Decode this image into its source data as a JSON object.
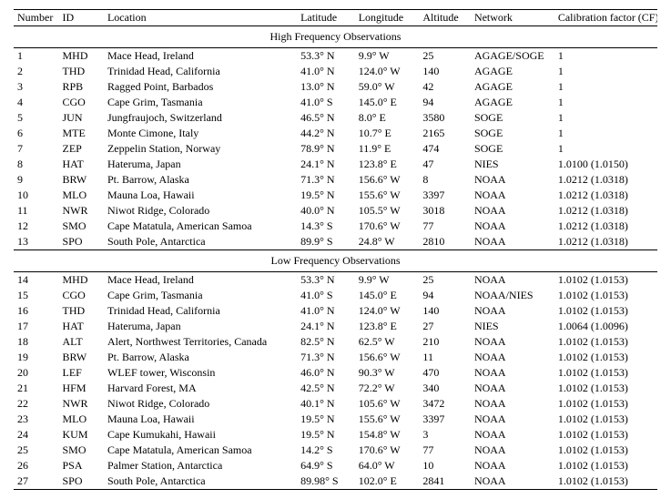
{
  "headers": {
    "number": "Number",
    "id": "ID",
    "location": "Location",
    "latitude": "Latitude",
    "longitude": "Longitude",
    "altitude": "Altitude",
    "network": "Network",
    "cf": "Calibration factor (CF)"
  },
  "sections": [
    {
      "title": "High Frequency Observations",
      "rows": [
        {
          "num": "1",
          "id": "MHD",
          "loc": "Mace Head, Ireland",
          "lat": "53.3° N",
          "lon": "9.9° W",
          "alt": "25",
          "net": "AGAGE/SOGE",
          "cf": "1"
        },
        {
          "num": "2",
          "id": "THD",
          "loc": "Trinidad Head, California",
          "lat": "41.0° N",
          "lon": "124.0° W",
          "alt": "140",
          "net": "AGAGE",
          "cf": "1"
        },
        {
          "num": "3",
          "id": "RPB",
          "loc": "Ragged Point, Barbados",
          "lat": "13.0° N",
          "lon": "59.0° W",
          "alt": "42",
          "net": "AGAGE",
          "cf": "1"
        },
        {
          "num": "4",
          "id": "CGO",
          "loc": "Cape Grim, Tasmania",
          "lat": "41.0° S",
          "lon": "145.0° E",
          "alt": "94",
          "net": "AGAGE",
          "cf": "1"
        },
        {
          "num": "5",
          "id": "JUN",
          "loc": "Jungfraujoch, Switzerland",
          "lat": "46.5° N",
          "lon": "8.0° E",
          "alt": "3580",
          "net": "SOGE",
          "cf": "1"
        },
        {
          "num": "6",
          "id": "MTE",
          "loc": "Monte Cimone, Italy",
          "lat": "44.2° N",
          "lon": "10.7° E",
          "alt": "2165",
          "net": "SOGE",
          "cf": "1"
        },
        {
          "num": "7",
          "id": "ZEP",
          "loc": "Zeppelin Station, Norway",
          "lat": "78.9° N",
          "lon": "11.9° E",
          "alt": "474",
          "net": "SOGE",
          "cf": "1"
        },
        {
          "num": "8",
          "id": "HAT",
          "loc": "Hateruma, Japan",
          "lat": "24.1° N",
          "lon": "123.8° E",
          "alt": "47",
          "net": "NIES",
          "cf": "1.0100 (1.0150)"
        },
        {
          "num": "9",
          "id": "BRW",
          "loc": "Pt. Barrow, Alaska",
          "lat": "71.3° N",
          "lon": "156.6° W",
          "alt": "8",
          "net": "NOAA",
          "cf": "1.0212 (1.0318)"
        },
        {
          "num": "10",
          "id": "MLO",
          "loc": "Mauna Loa, Hawaii",
          "lat": "19.5° N",
          "lon": "155.6° W",
          "alt": "3397",
          "net": "NOAA",
          "cf": "1.0212 (1.0318)"
        },
        {
          "num": "11",
          "id": "NWR",
          "loc": "Niwot Ridge, Colorado",
          "lat": "40.0° N",
          "lon": "105.5° W",
          "alt": "3018",
          "net": "NOAA",
          "cf": "1.0212 (1.0318)"
        },
        {
          "num": "12",
          "id": "SMO",
          "loc": "Cape Matatula, American Samoa",
          "lat": "14.3° S",
          "lon": "170.6° W",
          "alt": "77",
          "net": "NOAA",
          "cf": "1.0212 (1.0318)"
        },
        {
          "num": "13",
          "id": "SPO",
          "loc": "South Pole, Antarctica",
          "lat": "89.9° S",
          "lon": "24.8° W",
          "alt": "2810",
          "net": "NOAA",
          "cf": "1.0212 (1.0318)"
        }
      ]
    },
    {
      "title": "Low Frequency Observations",
      "rows": [
        {
          "num": "14",
          "id": "MHD",
          "loc": "Mace Head, Ireland",
          "lat": "53.3° N",
          "lon": "9.9° W",
          "alt": "25",
          "net": "NOAA",
          "cf": "1.0102 (1.0153)"
        },
        {
          "num": "15",
          "id": "CGO",
          "loc": "Cape Grim, Tasmania",
          "lat": "41.0° S",
          "lon": "145.0° E",
          "alt": "94",
          "net": "NOAA/NIES",
          "cf": "1.0102 (1.0153)"
        },
        {
          "num": "16",
          "id": "THD",
          "loc": "Trinidad Head, California",
          "lat": "41.0° N",
          "lon": "124.0° W",
          "alt": "140",
          "net": "NOAA",
          "cf": "1.0102 (1.0153)"
        },
        {
          "num": "17",
          "id": "HAT",
          "loc": "Hateruma, Japan",
          "lat": "24.1° N",
          "lon": "123.8° E",
          "alt": "27",
          "net": "NIES",
          "cf": "1.0064 (1.0096)"
        },
        {
          "num": "18",
          "id": "ALT",
          "loc": "Alert, Northwest Territories, Canada",
          "lat": "82.5° N",
          "lon": "62.5° W",
          "alt": "210",
          "net": "NOAA",
          "cf": "1.0102 (1.0153)"
        },
        {
          "num": "19",
          "id": "BRW",
          "loc": "Pt. Barrow, Alaska",
          "lat": "71.3° N",
          "lon": "156.6° W",
          "alt": "11",
          "net": "NOAA",
          "cf": "1.0102 (1.0153)"
        },
        {
          "num": "20",
          "id": "LEF",
          "loc": "WLEF tower, Wisconsin",
          "lat": "46.0° N",
          "lon": "90.3° W",
          "alt": "470",
          "net": "NOAA",
          "cf": "1.0102 (1.0153)"
        },
        {
          "num": "21",
          "id": "HFM",
          "loc": "Harvard Forest, MA",
          "lat": "42.5° N",
          "lon": "72.2° W",
          "alt": "340",
          "net": "NOAA",
          "cf": "1.0102 (1.0153)"
        },
        {
          "num": "22",
          "id": "NWR",
          "loc": "Niwot Ridge, Colorado",
          "lat": "40.1° N",
          "lon": "105.6° W",
          "alt": "3472",
          "net": "NOAA",
          "cf": "1.0102 (1.0153)"
        },
        {
          "num": "23",
          "id": "MLO",
          "loc": "Mauna Loa, Hawaii",
          "lat": "19.5° N",
          "lon": "155.6° W",
          "alt": "3397",
          "net": "NOAA",
          "cf": "1.0102 (1.0153)"
        },
        {
          "num": "24",
          "id": "KUM",
          "loc": "Cape Kumukahi, Hawaii",
          "lat": "19.5° N",
          "lon": "154.8° W",
          "alt": "3",
          "net": "NOAA",
          "cf": "1.0102 (1.0153)"
        },
        {
          "num": "25",
          "id": "SMO",
          "loc": "Cape Matatula, American Samoa",
          "lat": "14.2° S",
          "lon": "170.6° W",
          "alt": "77",
          "net": "NOAA",
          "cf": "1.0102 (1.0153)"
        },
        {
          "num": "26",
          "id": "PSA",
          "loc": "Palmer Station, Antarctica",
          "lat": "64.9° S",
          "lon": "64.0° W",
          "alt": "10",
          "net": "NOAA",
          "cf": "1.0102 (1.0153)"
        },
        {
          "num": "27",
          "id": "SPO",
          "loc": "South Pole, Antarctica",
          "lat": "89.98° S",
          "lon": "102.0° E",
          "alt": "2841",
          "net": "NOAA",
          "cf": "1.0102 (1.0153)"
        }
      ]
    }
  ]
}
